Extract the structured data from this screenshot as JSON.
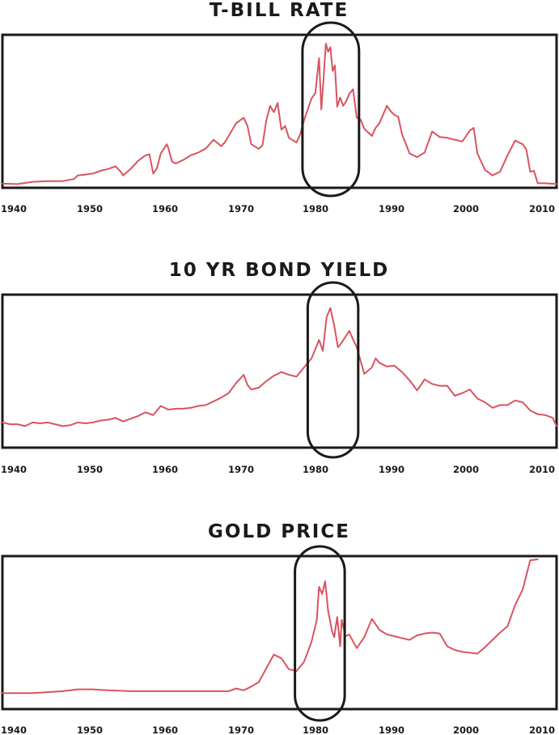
{
  "palette": {
    "line": "#d9545f",
    "ink": "#1a1a1a"
  },
  "chart_data": [
    {
      "type": "line",
      "title": "T-BILL RATE",
      "x_ticks": [
        "1940",
        "1950",
        "1960",
        "1970",
        "1980",
        "1990",
        "2000",
        "2010"
      ],
      "xlim": [
        1938,
        2011.5
      ],
      "ylim": [
        0,
        16
      ],
      "y_scale": "relative, unlabeled",
      "grid": false,
      "highlight": {
        "x_range": [
          1977.8,
          1985.3
        ],
        "shape": "rounded-rectangle"
      },
      "series": [
        {
          "points": [
            [
              1938,
              0.1
            ],
            [
              1940,
              0.05
            ],
            [
              1942,
              0.3
            ],
            [
              1944,
              0.38
            ],
            [
              1946,
              0.38
            ],
            [
              1947.5,
              0.6
            ],
            [
              1948,
              1.0
            ],
            [
              1949,
              1.1
            ],
            [
              1950,
              1.2
            ],
            [
              1951,
              1.5
            ],
            [
              1952,
              1.7
            ],
            [
              1953,
              2.0
            ],
            [
              1953.7,
              1.4
            ],
            [
              1954,
              1.0
            ],
            [
              1955,
              1.7
            ],
            [
              1956,
              2.6
            ],
            [
              1957,
              3.2
            ],
            [
              1957.5,
              3.3
            ],
            [
              1958,
              1.2
            ],
            [
              1958.5,
              1.8
            ],
            [
              1959,
              3.4
            ],
            [
              1959.8,
              4.4
            ],
            [
              1960,
              4.0
            ],
            [
              1960.5,
              2.5
            ],
            [
              1961,
              2.3
            ],
            [
              1962,
              2.7
            ],
            [
              1963,
              3.2
            ],
            [
              1964,
              3.5
            ],
            [
              1965,
              3.95
            ],
            [
              1966,
              4.9
            ],
            [
              1967,
              4.2
            ],
            [
              1967.5,
              4.6
            ],
            [
              1968,
              5.3
            ],
            [
              1969,
              6.7
            ],
            [
              1970,
              7.3
            ],
            [
              1970.5,
              6.4
            ],
            [
              1971,
              4.4
            ],
            [
              1972,
              3.9
            ],
            [
              1972.5,
              4.3
            ],
            [
              1973,
              7.0
            ],
            [
              1973.5,
              8.6
            ],
            [
              1974,
              7.9
            ],
            [
              1974.5,
              8.9
            ],
            [
              1975,
              6.0
            ],
            [
              1975.5,
              6.4
            ],
            [
              1976,
              5.1
            ],
            [
              1977,
              4.6
            ],
            [
              1977.5,
              5.5
            ],
            [
              1978,
              7.0
            ],
            [
              1978.5,
              8.2
            ],
            [
              1979,
              9.4
            ],
            [
              1979.5,
              10.0
            ],
            [
              1980,
              13.8
            ],
            [
              1980.3,
              8.2
            ],
            [
              1980.6,
              11.6
            ],
            [
              1980.9,
              15.4
            ],
            [
              1981.2,
              14.5
            ],
            [
              1981.5,
              15.0
            ],
            [
              1981.8,
              12.4
            ],
            [
              1982.1,
              13.0
            ],
            [
              1982.4,
              8.5
            ],
            [
              1982.8,
              9.5
            ],
            [
              1983.2,
              8.6
            ],
            [
              1983.6,
              9.1
            ],
            [
              1984,
              9.9
            ],
            [
              1984.5,
              10.4
            ],
            [
              1985,
              7.3
            ],
            [
              1985.5,
              7.1
            ],
            [
              1986,
              6.1
            ],
            [
              1987,
              5.3
            ],
            [
              1987.5,
              6.2
            ],
            [
              1988,
              6.7
            ],
            [
              1989,
              8.6
            ],
            [
              1989.5,
              8.0
            ],
            [
              1990,
              7.6
            ],
            [
              1990.5,
              7.4
            ],
            [
              1991,
              5.5
            ],
            [
              1992,
              3.4
            ],
            [
              1993,
              3.0
            ],
            [
              1994,
              3.5
            ],
            [
              1995,
              5.8
            ],
            [
              1996,
              5.2
            ],
            [
              1997,
              5.1
            ],
            [
              1998,
              4.9
            ],
            [
              1999,
              4.7
            ],
            [
              2000,
              5.9
            ],
            [
              2000.5,
              6.2
            ],
            [
              2001,
              3.4
            ],
            [
              2002,
              1.6
            ],
            [
              2003,
              1.0
            ],
            [
              2004,
              1.4
            ],
            [
              2005,
              3.2
            ],
            [
              2006,
              4.8
            ],
            [
              2007,
              4.4
            ],
            [
              2007.5,
              3.8
            ],
            [
              2008,
              1.4
            ],
            [
              2008.5,
              1.5
            ],
            [
              2009,
              0.15
            ],
            [
              2010,
              0.14
            ],
            [
              2011.5,
              0.05
            ]
          ]
        }
      ]
    },
    {
      "type": "line",
      "title": "10 YR BOND YIELD",
      "x_ticks": [
        "1940",
        "1950",
        "1960",
        "1970",
        "1980",
        "1990",
        "2000",
        "2010"
      ],
      "xlim": [
        1938,
        2011.5
      ],
      "ylim": [
        0,
        16
      ],
      "y_scale": "relative, unlabeled",
      "grid": false,
      "highlight": {
        "x_range": [
          1978.5,
          1985.2
        ],
        "shape": "rounded-rectangle"
      },
      "series": [
        {
          "points": [
            [
              1938,
              2.4
            ],
            [
              1939,
              2.2
            ],
            [
              1940,
              2.2
            ],
            [
              1941,
              2.0
            ],
            [
              1942,
              2.4
            ],
            [
              1943,
              2.3
            ],
            [
              1944,
              2.4
            ],
            [
              1945,
              2.2
            ],
            [
              1946,
              2.0
            ],
            [
              1947,
              2.1
            ],
            [
              1948,
              2.4
            ],
            [
              1949,
              2.3
            ],
            [
              1950,
              2.4
            ],
            [
              1951,
              2.6
            ],
            [
              1952,
              2.7
            ],
            [
              1953,
              2.9
            ],
            [
              1954,
              2.5
            ],
            [
              1955,
              2.8
            ],
            [
              1956,
              3.1
            ],
            [
              1957,
              3.5
            ],
            [
              1958,
              3.2
            ],
            [
              1959,
              4.2
            ],
            [
              1960,
              3.8
            ],
            [
              1961,
              3.9
            ],
            [
              1962,
              3.9
            ],
            [
              1963,
              4.0
            ],
            [
              1964,
              4.2
            ],
            [
              1965,
              4.3
            ],
            [
              1966,
              4.7
            ],
            [
              1967,
              5.1
            ],
            [
              1968,
              5.6
            ],
            [
              1969,
              6.7
            ],
            [
              1970,
              7.6
            ],
            [
              1970.5,
              6.5
            ],
            [
              1971,
              6.0
            ],
            [
              1972,
              6.2
            ],
            [
              1973,
              6.9
            ],
            [
              1974,
              7.5
            ],
            [
              1975,
              7.9
            ],
            [
              1976,
              7.6
            ],
            [
              1977,
              7.4
            ],
            [
              1978,
              8.4
            ],
            [
              1979,
              9.4
            ],
            [
              1980,
              11.4
            ],
            [
              1980.5,
              10.2
            ],
            [
              1981,
              13.9
            ],
            [
              1981.5,
              14.9
            ],
            [
              1982,
              13.0
            ],
            [
              1982.5,
              10.6
            ],
            [
              1983,
              11.1
            ],
            [
              1984,
              12.4
            ],
            [
              1984.6,
              11.3
            ],
            [
              1985,
              10.6
            ],
            [
              1986,
              7.7
            ],
            [
              1987,
              8.4
            ],
            [
              1987.5,
              9.4
            ],
            [
              1988,
              8.9
            ],
            [
              1989,
              8.5
            ],
            [
              1990,
              8.6
            ],
            [
              1991,
              7.9
            ],
            [
              1992,
              7.0
            ],
            [
              1993,
              5.9
            ],
            [
              1994,
              7.1
            ],
            [
              1995,
              6.6
            ],
            [
              1996,
              6.4
            ],
            [
              1997,
              6.4
            ],
            [
              1998,
              5.3
            ],
            [
              1999,
              5.6
            ],
            [
              2000,
              6.0
            ],
            [
              2001,
              5.0
            ],
            [
              2002,
              4.6
            ],
            [
              2003,
              4.0
            ],
            [
              2004,
              4.3
            ],
            [
              2005,
              4.3
            ],
            [
              2006,
              4.8
            ],
            [
              2007,
              4.6
            ],
            [
              2008,
              3.7
            ],
            [
              2009,
              3.3
            ],
            [
              2010,
              3.2
            ],
            [
              2011,
              2.9
            ],
            [
              2011.5,
              2.0
            ]
          ]
        }
      ]
    },
    {
      "type": "line",
      "title": "GOLD PRICE",
      "x_ticks": [
        "1940",
        "1950",
        "1960",
        "1970",
        "1980",
        "1990",
        "2000",
        "2010"
      ],
      "xlim": [
        1938,
        2011.5
      ],
      "ylim": [
        0,
        16
      ],
      "y_scale": "relative, unlabeled",
      "grid": false,
      "highlight": {
        "x_range": [
          1976.8,
          1983.4
        ],
        "shape": "rounded-rectangle"
      },
      "series": [
        {
          "points": [
            [
              1938,
              1.4
            ],
            [
              1942,
              1.4
            ],
            [
              1946,
              1.6
            ],
            [
              1948,
              1.8
            ],
            [
              1950,
              1.8
            ],
            [
              1952,
              1.7
            ],
            [
              1955,
              1.6
            ],
            [
              1960,
              1.6
            ],
            [
              1965,
              1.6
            ],
            [
              1968,
              1.6
            ],
            [
              1969,
              1.9
            ],
            [
              1970,
              1.7
            ],
            [
              1971,
              2.1
            ],
            [
              1972,
              2.6
            ],
            [
              1973,
              4.1
            ],
            [
              1974,
              5.6
            ],
            [
              1975,
              5.2
            ],
            [
              1976,
              4.0
            ],
            [
              1977,
              3.8
            ],
            [
              1978,
              4.8
            ],
            [
              1979,
              7.0
            ],
            [
              1979.7,
              9.4
            ],
            [
              1980,
              13.0
            ],
            [
              1980.4,
              12.2
            ],
            [
              1980.8,
              13.6
            ],
            [
              1981.2,
              10.4
            ],
            [
              1981.7,
              8.2
            ],
            [
              1982,
              7.5
            ],
            [
              1982.4,
              9.7
            ],
            [
              1982.8,
              6.5
            ],
            [
              1983,
              9.4
            ],
            [
              1983.5,
              7.6
            ],
            [
              1984,
              7.8
            ],
            [
              1985,
              6.3
            ],
            [
              1986,
              7.5
            ],
            [
              1987,
              9.5
            ],
            [
              1988,
              8.3
            ],
            [
              1989,
              7.8
            ],
            [
              1990,
              7.6
            ],
            [
              1991,
              7.4
            ],
            [
              1992,
              7.2
            ],
            [
              1993,
              7.7
            ],
            [
              1994,
              7.9
            ],
            [
              1995,
              8.0
            ],
            [
              1996,
              7.9
            ],
            [
              1997,
              6.5
            ],
            [
              1998,
              6.1
            ],
            [
              1999,
              5.9
            ],
            [
              2000,
              5.8
            ],
            [
              2001,
              5.7
            ],
            [
              2002,
              6.4
            ],
            [
              2003,
              7.2
            ],
            [
              2004,
              8.0
            ],
            [
              2005,
              8.7
            ],
            [
              2006,
              11.0
            ],
            [
              2007,
              12.7
            ],
            [
              2008,
              15.9
            ],
            [
              2009,
              16.0
            ]
          ]
        }
      ]
    }
  ]
}
